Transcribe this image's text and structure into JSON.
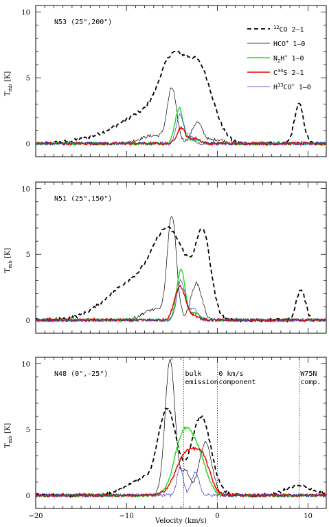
{
  "chart_data": {
    "type": "line",
    "xlabel": "Velocity (km/s)",
    "ylabel": "T",
    "ylabel_sub": "mb",
    "ylabel_unit": "[K]",
    "xlim": [
      -20,
      12
    ],
    "ylim": [
      -1,
      10.5
    ],
    "x_ticks": [
      -20,
      -10,
      0,
      10
    ],
    "y_ticks": [
      0,
      5,
      10
    ],
    "legend_placement": "top-right",
    "grid": false,
    "styles": {
      "co": {
        "color": "#000000",
        "width": 1.8,
        "dash": "6,4"
      },
      "hco": {
        "color": "#000000",
        "width": 0.7,
        "dash": ""
      },
      "n2h": {
        "color": "#22dd22",
        "width": 1.5,
        "dash": ""
      },
      "cs": {
        "color": "#ee0000",
        "width": 1.5,
        "dash": ""
      },
      "h13co": {
        "color": "#3333cc",
        "width": 0.7,
        "dash": ""
      }
    },
    "legend": [
      {
        "key": "co",
        "sup": "12",
        "base": "CO",
        "sub": "",
        "sup2": "",
        "trans": " 2–1"
      },
      {
        "key": "hco",
        "sup": "",
        "base": "HCO",
        "sub": "",
        "sup2": "+",
        "trans": " 1–0"
      },
      {
        "key": "n2h",
        "sup": "",
        "base": "N",
        "sub": "2",
        "base2": "H",
        "sup2": "+",
        "trans": " 1–0"
      },
      {
        "key": "cs",
        "sup": "",
        "base": "C",
        "sub": "",
        "sup2": "",
        "mid_sup": "34",
        "base2": "S",
        "trans": " 2–1"
      },
      {
        "key": "h13co",
        "sup": "",
        "base": "H",
        "sub": "",
        "mid_sup": "13",
        "base2": "CO",
        "sup2": "+",
        "trans": " 1–0"
      }
    ],
    "panels": [
      {
        "label": "N53 (25\",200\")",
        "y_ticks": [
          0,
          5,
          10
        ],
        "series": [
          {
            "key": "co",
            "peaks": [
              [
                -5.0,
                5.1,
                1.4
              ],
              [
                -2.0,
                5.6,
                1.5
              ],
              [
                -8.0,
                2.0,
                2.5
              ],
              [
                -12.0,
                0.5,
                3.0
              ],
              [
                9.0,
                3.0,
                0.5
              ]
            ]
          },
          {
            "key": "hco",
            "peaks": [
              [
                -5.0,
                4.0,
                0.5
              ],
              [
                -2.2,
                1.6,
                0.6
              ],
              [
                -7.0,
                0.6,
                1.5
              ],
              [
                0.0,
                0.3,
                0.8
              ]
            ]
          },
          {
            "key": "n2h",
            "peaks": [
              [
                -4.2,
                2.7,
                0.45
              ],
              [
                -2.5,
                0.3,
                0.6
              ]
            ]
          },
          {
            "key": "cs",
            "peaks": [
              [
                -4.0,
                1.2,
                0.45
              ],
              [
                -2.5,
                0.4,
                0.6
              ]
            ]
          },
          {
            "key": "h13co",
            "peaks": [
              [
                -4.1,
                2.2,
                0.4
              ],
              [
                -3.0,
                0.5,
                0.4
              ]
            ]
          }
        ]
      },
      {
        "label": "N51 (25\",150\")",
        "y_ticks": [
          0,
          5,
          10
        ],
        "series": [
          {
            "key": "co",
            "peaks": [
              [
                -5.5,
                5.0,
                1.6
              ],
              [
                -1.5,
                5.3,
                0.8
              ],
              [
                -9.0,
                3.0,
                3.0
              ],
              [
                -3.0,
                2.0,
                1.5
              ],
              [
                9.2,
                2.3,
                0.5
              ]
            ]
          },
          {
            "key": "hco",
            "peaks": [
              [
                -5.0,
                7.8,
                0.5
              ],
              [
                -2.3,
                2.8,
                0.6
              ],
              [
                -7.0,
                0.8,
                1.2
              ]
            ]
          },
          {
            "key": "n2h",
            "peaks": [
              [
                -4.0,
                3.9,
                0.45
              ],
              [
                -2.5,
                0.5,
                0.6
              ]
            ]
          },
          {
            "key": "cs",
            "peaks": [
              [
                -4.1,
                2.6,
                0.6
              ],
              [
                -2.5,
                0.3,
                0.5
              ]
            ]
          },
          {
            "key": "h13co",
            "peaks": [
              [
                -4.0,
                3.0,
                0.45
              ],
              [
                -2.6,
                0.8,
                0.5
              ]
            ]
          }
        ]
      },
      {
        "label": "N48 (0\",-25\")",
        "y_ticks": [
          0,
          5,
          10
        ],
        "series": [
          {
            "key": "co",
            "peaks": [
              [
                -5.5,
                6.5,
                1.0
              ],
              [
                -1.8,
                6.0,
                1.1
              ],
              [
                -8.5,
                1.2,
                1.5
              ],
              [
                9.0,
                0.7,
                1.5
              ]
            ]
          },
          {
            "key": "hco",
            "peaks": [
              [
                -5.2,
                10.3,
                0.55
              ],
              [
                -1.3,
                4.0,
                0.7
              ],
              [
                -3.5,
                1.8,
                0.5
              ]
            ]
          },
          {
            "key": "n2h",
            "peaks": [
              [
                -3.7,
                4.6,
                1.0
              ],
              [
                -2.0,
                2.5,
                0.9
              ]
            ]
          },
          {
            "key": "cs",
            "peaks": [
              [
                -3.3,
                3.3,
                1.2
              ],
              [
                -1.5,
                2.0,
                0.8
              ]
            ]
          },
          {
            "key": "h13co",
            "peaks": [
              [
                -4.1,
                2.1,
                0.35
              ],
              [
                -2.4,
                1.8,
                0.4
              ]
            ]
          }
        ],
        "vlines": [
          {
            "x": -3.7,
            "text": [
              "bulk",
              "emission"
            ]
          },
          {
            "x": 0.0,
            "text": [
              "0 km/s",
              "component"
            ]
          },
          {
            "x": 9.0,
            "text": [
              "W75N",
              "comp."
            ]
          }
        ]
      }
    ]
  }
}
